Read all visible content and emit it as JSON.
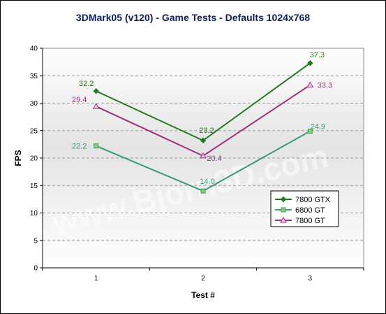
{
  "chart_data": {
    "type": "line",
    "title": "3DMark05 (v120) - Game Tests - Defaults 1024x768",
    "xlabel": "Test #",
    "ylabel": "FPS",
    "categories": [
      "1",
      "2",
      "3"
    ],
    "ylim": [
      0,
      40
    ],
    "yticks": [
      0,
      5,
      10,
      15,
      20,
      25,
      30,
      35,
      40
    ],
    "grid": true,
    "legend_position": "right",
    "watermark": "www.Bjorn3D.com",
    "series": [
      {
        "name": "7800 GTX",
        "values": [
          32.2,
          23.2,
          37.3
        ],
        "labels": [
          "32.2",
          "23.2",
          "37.3"
        ],
        "color": "#217a1b",
        "marker": "diamond"
      },
      {
        "name": "6800 GT",
        "values": [
          22.2,
          14.0,
          24.9
        ],
        "labels": [
          "22.2",
          "14.0",
          "24.9"
        ],
        "color": "#3a9a7c",
        "marker_fill": "#8ed05a",
        "marker": "square"
      },
      {
        "name": "7800 GT",
        "values": [
          29.4,
          20.4,
          33.3
        ],
        "labels": [
          "29.4",
          "20.4",
          "33.3"
        ],
        "color": "#a0307f",
        "marker_fill": "#e8c8f0",
        "marker": "triangle"
      }
    ]
  }
}
